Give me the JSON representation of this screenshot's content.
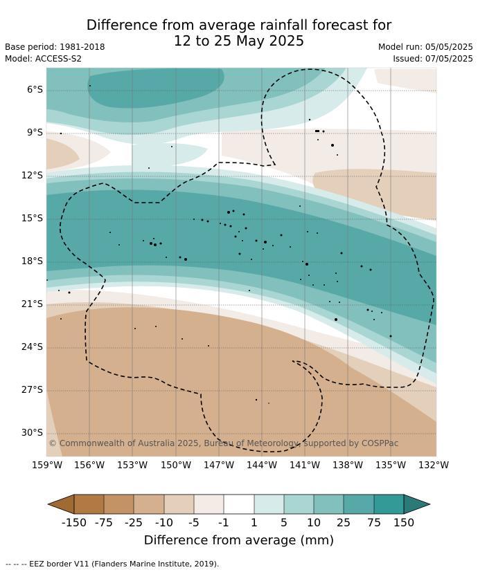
{
  "title_line1": "Difference from average rainfall forecast for",
  "title_line2": "12 to 25 May 2025",
  "base_period": "Base period: 1981-2018",
  "model": "Model: ACCESS-S2",
  "model_run": "Model run: 05/05/2025",
  "issued": "Issued: 07/05/2025",
  "copyright": "© Commonwealth of Australia 2025, Bureau of Meteorology, supported by COSPPac",
  "lat_labels": [
    "6°S",
    "9°S",
    "12°S",
    "15°S",
    "18°S",
    "21°S",
    "24°S",
    "27°S",
    "30°S"
  ],
  "lon_labels": [
    "159°W",
    "156°W",
    "153°W",
    "150°W",
    "147°W",
    "144°W",
    "141°W",
    "138°W",
    "135°W",
    "132°W"
  ],
  "colorbar": {
    "title": "Difference from average (mm)",
    "ticks": [
      "-150",
      "-75",
      "-25",
      "-10",
      "-5",
      "-1",
      "1",
      "5",
      "10",
      "25",
      "75",
      "150"
    ],
    "colors": [
      "#8b5a2b",
      "#b07a45",
      "#c39366",
      "#d4b08e",
      "#e4cfbb",
      "#f3ebe5",
      "#ffffff",
      "#d6ebea",
      "#a9d5d3",
      "#82c0be",
      "#57a9a8",
      "#339a98",
      "#2a7a78"
    ]
  },
  "footer_note": "--  --  -- EEZ border V11 (Flanders Marine Institute, 2019)."
}
